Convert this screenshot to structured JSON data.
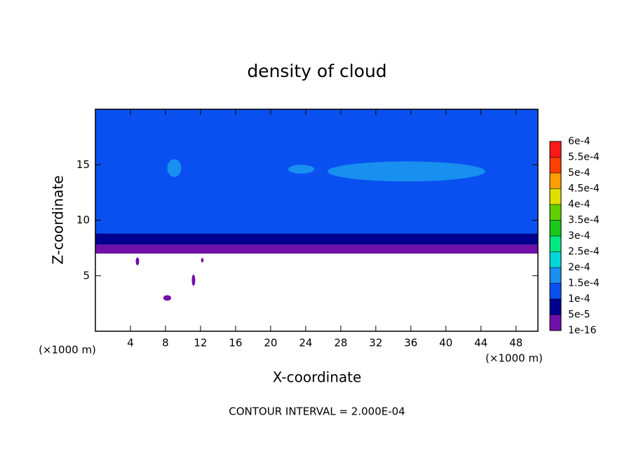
{
  "chart_data": {
    "type": "contour",
    "title": "density of cloud",
    "xlabel": "X-coordinate",
    "ylabel": "Z-coordinate",
    "x_unit": "(×1000 m)",
    "y_unit": "(×1000 m)",
    "annotation": "CONTOUR INTERVAL = 2.000E-04",
    "xlim": [
      0,
      50.5
    ],
    "ylim": [
      0,
      20
    ],
    "xticks": [
      4,
      8,
      12,
      16,
      20,
      24,
      28,
      32,
      36,
      40,
      44,
      48
    ],
    "yticks": [
      5,
      10,
      15
    ],
    "colorbar_ticks": [
      {
        "value": 1e-16,
        "label": "1e-16"
      },
      {
        "value": 5e-05,
        "label": "5e-5"
      },
      {
        "value": 0.0001,
        "label": "1e-4"
      },
      {
        "value": 0.00015,
        "label": "1.5e-4"
      },
      {
        "value": 0.0002,
        "label": "2e-4"
      },
      {
        "value": 0.00025,
        "label": "2.5e-4"
      },
      {
        "value": 0.0003,
        "label": "3e-4"
      },
      {
        "value": 0.00035,
        "label": "3.5e-4"
      },
      {
        "value": 0.0004,
        "label": "4e-4"
      },
      {
        "value": 0.00045,
        "label": "4.5e-4"
      },
      {
        "value": 0.0005,
        "label": "5e-4"
      },
      {
        "value": 0.00055,
        "label": "5.5e-4"
      },
      {
        "value": 0.0006,
        "label": "6e-4"
      }
    ],
    "colors": [
      "#7010a8",
      "#000090",
      "#0a50f0",
      "#1890f0",
      "#00d8d8",
      "#00e880",
      "#18c818",
      "#60d000",
      "#e0e000",
      "#ffa000",
      "#ff4000",
      "#ff1818"
    ],
    "top_color": "#ff9090",
    "layers": [
      {
        "z": [
          7.0,
          7.8
        ],
        "value": 2e-05
      },
      {
        "z": [
          7.8,
          8.8
        ],
        "value": 7e-05
      },
      {
        "z": [
          8.8,
          20
        ],
        "value": 0.00012
      }
    ],
    "blobs": [
      {
        "x": 35.5,
        "z": 14.4,
        "rx": 9,
        "rz": 0.9,
        "value": 0.00017
      },
      {
        "x": 9.0,
        "z": 14.7,
        "rx": 0.8,
        "rz": 0.8,
        "value": 0.00017
      },
      {
        "x": 23.5,
        "z": 14.6,
        "rx": 1.5,
        "rz": 0.4,
        "value": 0.00017
      },
      {
        "x": 4.8,
        "z": 6.3,
        "rx": 0.2,
        "rz": 0.35,
        "value": 2e-05
      },
      {
        "x": 8.2,
        "z": 3.0,
        "rx": 0.45,
        "rz": 0.25,
        "value": 2e-05
      },
      {
        "x": 11.2,
        "z": 4.6,
        "rx": 0.2,
        "rz": 0.5,
        "value": 2e-05
      },
      {
        "x": 12.2,
        "z": 6.4,
        "rx": 0.15,
        "rz": 0.2,
        "value": 2e-05
      }
    ]
  }
}
